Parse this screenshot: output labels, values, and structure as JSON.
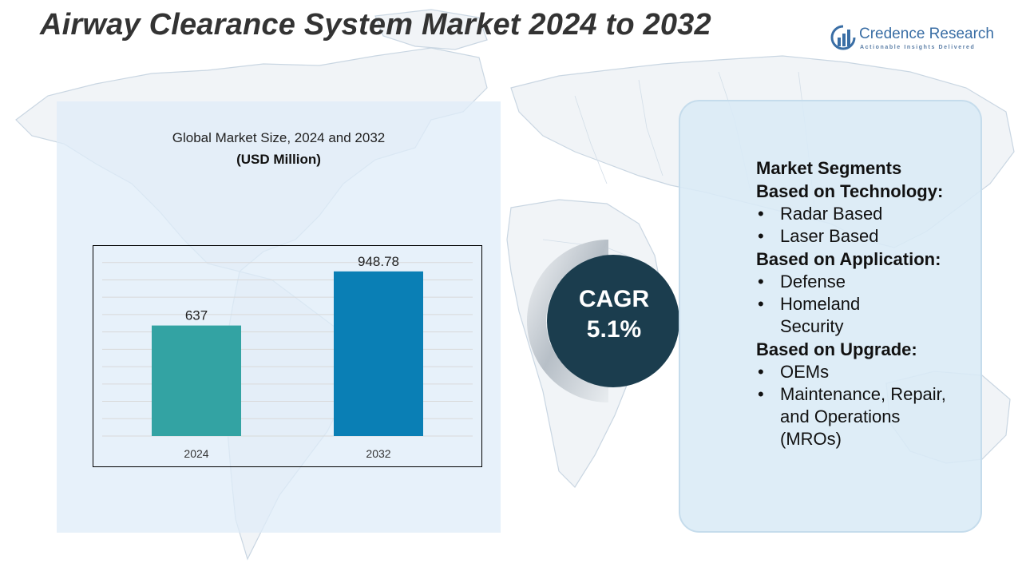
{
  "title": "Airway Clearance System Market 2024 to 2032",
  "brand": {
    "name": "Credence Research",
    "tagline": "Actionable Insights Delivered",
    "icon": "bar-chart-circle-icon"
  },
  "chart_panel": {
    "title": "Global Market Size, 2024 and 2032",
    "unit": "(USD Million)"
  },
  "chart_data": {
    "type": "bar",
    "categories": [
      "2024",
      "2032"
    ],
    "values": [
      637,
      948.78
    ],
    "value_labels": [
      "637",
      "948.78"
    ],
    "ylim": [
      0,
      1100
    ],
    "grid": true,
    "bar_colors": [
      "#33a3a3",
      "#0a7fb5"
    ]
  },
  "cagr": {
    "label": "CAGR",
    "value": "5.1%",
    "circle_color": "#1b3d4e"
  },
  "segments": {
    "heading": "Market Segments",
    "groups": [
      {
        "title": "Based on Technology:",
        "items": [
          "Radar Based",
          "Laser Based"
        ]
      },
      {
        "title": "Based on Application:",
        "items": [
          "Defense",
          "Homeland Security"
        ]
      },
      {
        "title": "Based on Upgrade:",
        "items": [
          "OEMs",
          "Maintenance, Repair, and Operations (MROs)"
        ]
      }
    ]
  },
  "colors": {
    "title": "#333333",
    "panel_bg": "#dfecf8",
    "accent": "#1b3d4e",
    "brand": "#3a6ea5"
  }
}
